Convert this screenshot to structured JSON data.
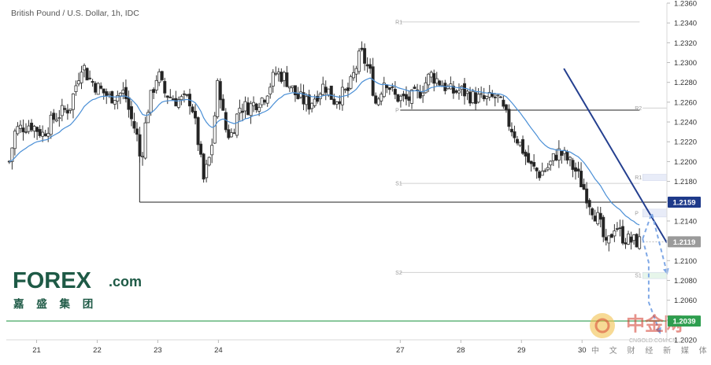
{
  "header": {
    "title": "British Pound / U.S. Dollar, 1h, IDC"
  },
  "colors": {
    "candle_up": "#555555",
    "candle_down": "#222222",
    "moving_average": "#4a8fd6",
    "trendline": "#243f8f",
    "support_line": "#2e9e4f",
    "projection": "#7fa8e6",
    "badge_current": "#1e3a8a",
    "badge_last": "#9a9a9a",
    "badge_support": "#2e9e4f"
  },
  "chart_data": {
    "type": "candlestick",
    "title": "British Pound / U.S. Dollar, 1h, IDC",
    "ylim": [
      1.202,
      1.236
    ],
    "y_ticks": [
      "1.2360",
      "1.2340",
      "1.2320",
      "1.2300",
      "1.2280",
      "1.2260",
      "1.2240",
      "1.2220",
      "1.2200",
      "1.2180",
      "1.2160",
      "1.2140",
      "1.2120",
      "1.2100",
      "1.2080",
      "1.2060",
      "1.2040",
      "1.2020"
    ],
    "x_ticks": [
      "21",
      "22",
      "23",
      "24",
      "27",
      "28",
      "29",
      "30"
    ],
    "x_range": [
      20.5,
      31.4
    ],
    "key_levels": [
      {
        "name": "level-12159",
        "value": 1.2159,
        "label": "1.2159",
        "style": "current"
      },
      {
        "name": "level-12119",
        "value": 1.2119,
        "label": "1.2119",
        "style": "last"
      },
      {
        "name": "level-support",
        "value": 1.2039,
        "label": "1.2039",
        "style": "support"
      }
    ],
    "pivots_prior": [
      {
        "label": "R1",
        "value": 1.2341
      },
      {
        "label": "P",
        "value": 1.2252
      },
      {
        "label": "S1",
        "value": 1.2178
      },
      {
        "label": "S2",
        "value": 1.2088
      }
    ],
    "pivots_current": [
      {
        "label": "R2",
        "value": 1.2254
      },
      {
        "label": "R1",
        "value": 1.2184
      },
      {
        "label": "P",
        "value": 1.2148
      },
      {
        "label": "S1",
        "value": 1.2085
      }
    ],
    "trendline": [
      {
        "x": 29.7,
        "y": 1.2294
      },
      {
        "x": 31.4,
        "y": 1.2118
      }
    ],
    "projections": [
      [
        {
          "x": 31.0,
          "y": 1.2122
        },
        {
          "x": 31.15,
          "y": 1.2148
        },
        {
          "x": 31.4,
          "y": 1.2088
        }
      ],
      [
        {
          "x": 31.0,
          "y": 1.2122
        },
        {
          "x": 31.1,
          "y": 1.2098
        },
        {
          "x": 31.1,
          "y": 1.2058
        },
        {
          "x": 31.28,
          "y": 1.2028
        }
      ]
    ],
    "close_path": [
      {
        "x": 20.55,
        "y": 1.22
      },
      {
        "x": 20.65,
        "y": 1.2232
      },
      {
        "x": 20.9,
        "y": 1.2238
      },
      {
        "x": 21.1,
        "y": 1.2228
      },
      {
        "x": 21.3,
        "y": 1.2245
      },
      {
        "x": 21.55,
        "y": 1.2255
      },
      {
        "x": 21.75,
        "y": 1.23
      },
      {
        "x": 21.85,
        "y": 1.2285
      },
      {
        "x": 22.0,
        "y": 1.2275
      },
      {
        "x": 22.2,
        "y": 1.2265
      },
      {
        "x": 22.45,
        "y": 1.227
      },
      {
        "x": 22.55,
        "y": 1.2245
      },
      {
        "x": 22.65,
        "y": 1.2228
      },
      {
        "x": 22.72,
        "y": 1.2198
      },
      {
        "x": 22.82,
        "y": 1.225
      },
      {
        "x": 23.0,
        "y": 1.229
      },
      {
        "x": 23.1,
        "y": 1.227
      },
      {
        "x": 23.3,
        "y": 1.2262
      },
      {
        "x": 23.55,
        "y": 1.2262
      },
      {
        "x": 23.68,
        "y": 1.2215
      },
      {
        "x": 23.75,
        "y": 1.218
      },
      {
        "x": 23.88,
        "y": 1.221
      },
      {
        "x": 24.0,
        "y": 1.2285
      },
      {
        "x": 24.1,
        "y": 1.2235
      },
      {
        "x": 24.2,
        "y": 1.2225
      },
      {
        "x": 24.35,
        "y": 1.2255
      },
      {
        "x": 24.5,
        "y": 1.2255
      },
      {
        "x": 24.75,
        "y": 1.2265
      },
      {
        "x": 24.95,
        "y": 1.229
      },
      {
        "x": 25.1,
        "y": 1.2285
      },
      {
        "x": 25.3,
        "y": 1.2265
      },
      {
        "x": 25.5,
        "y": 1.2258
      },
      {
        "x": 25.75,
        "y": 1.2278
      },
      {
        "x": 25.9,
        "y": 1.2262
      },
      {
        "x": 26.15,
        "y": 1.2272
      },
      {
        "x": 26.35,
        "y": 1.231
      },
      {
        "x": 26.5,
        "y": 1.229
      },
      {
        "x": 26.6,
        "y": 1.2258
      },
      {
        "x": 26.75,
        "y": 1.2285
      },
      {
        "x": 26.9,
        "y": 1.2266
      },
      {
        "x": 27.1,
        "y": 1.2262
      },
      {
        "x": 27.3,
        "y": 1.2268
      },
      {
        "x": 27.5,
        "y": 1.2288
      },
      {
        "x": 27.7,
        "y": 1.2278
      },
      {
        "x": 27.85,
        "y": 1.227
      },
      {
        "x": 28.0,
        "y": 1.2272
      },
      {
        "x": 28.2,
        "y": 1.2265
      },
      {
        "x": 28.4,
        "y": 1.2262
      },
      {
        "x": 28.6,
        "y": 1.2265
      },
      {
        "x": 28.8,
        "y": 1.2238
      },
      {
        "x": 29.0,
        "y": 1.2215
      },
      {
        "x": 29.15,
        "y": 1.2195
      },
      {
        "x": 29.3,
        "y": 1.2188
      },
      {
        "x": 29.45,
        "y": 1.2195
      },
      {
        "x": 29.6,
        "y": 1.221
      },
      {
        "x": 29.72,
        "y": 1.2205
      },
      {
        "x": 29.9,
        "y": 1.219
      },
      {
        "x": 30.05,
        "y": 1.217
      },
      {
        "x": 30.15,
        "y": 1.2155
      },
      {
        "x": 30.28,
        "y": 1.214
      },
      {
        "x": 30.4,
        "y": 1.2112
      },
      {
        "x": 30.55,
        "y": 1.2138
      },
      {
        "x": 30.65,
        "y": 1.2125
      },
      {
        "x": 30.78,
        "y": 1.212
      },
      {
        "x": 30.95,
        "y": 1.2119
      }
    ]
  },
  "logo": {
    "name": "FOREX.com",
    "main": "FOREX",
    "suffix": ".com",
    "tagline": "嘉 盛 集 团"
  },
  "watermark": {
    "main": "中金网",
    "sub": "CNGOLD.COM.CN",
    "tagline": "中 文 财 经 新 媒 体"
  }
}
